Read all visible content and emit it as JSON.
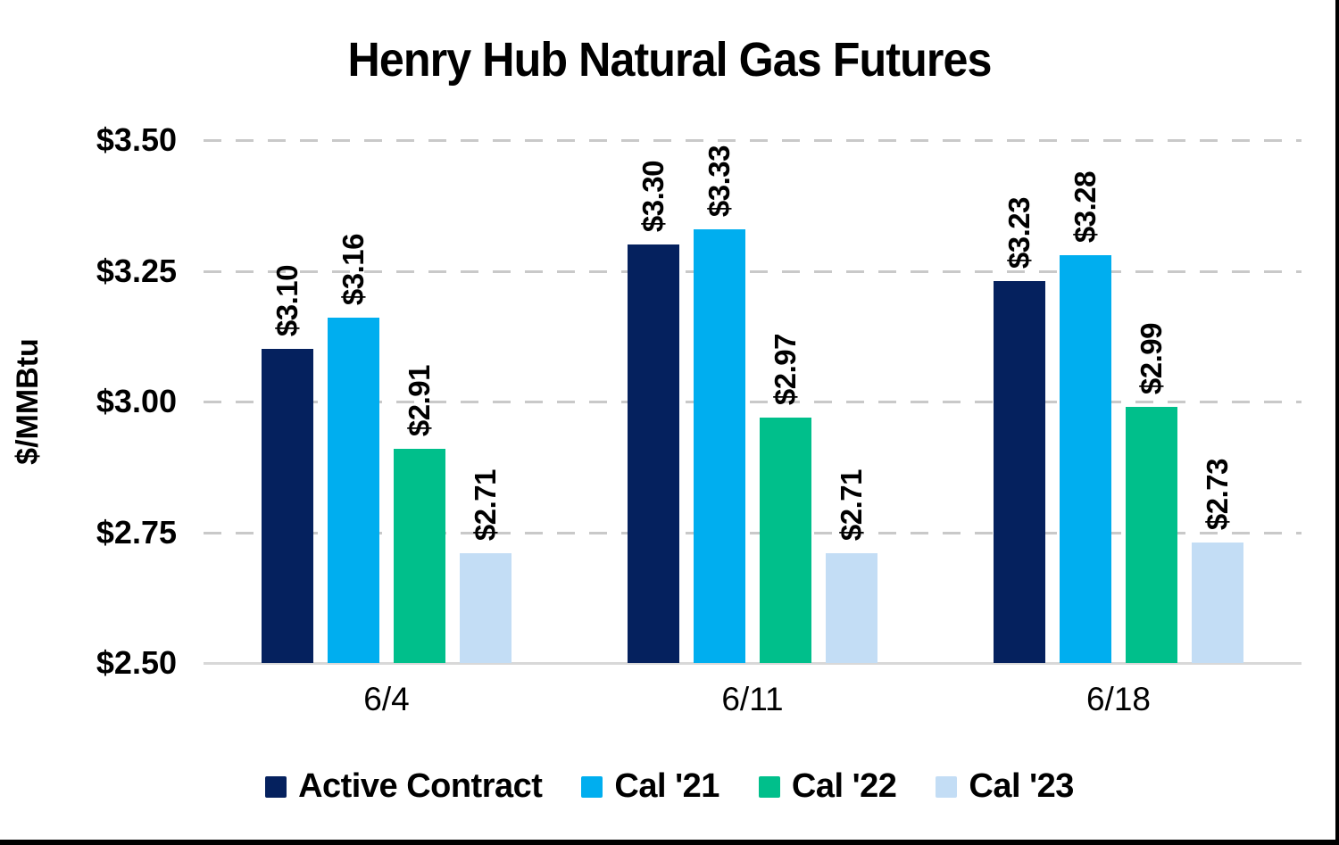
{
  "chart_data": {
    "type": "bar",
    "title": "Henry Hub Natural Gas Futures",
    "ylabel": "$/MMBtu",
    "xlabel": "",
    "categories": [
      "6/4",
      "6/11",
      "6/18"
    ],
    "series": [
      {
        "name": "Active Contract",
        "color": "#05215E",
        "values": [
          3.1,
          3.3,
          3.23
        ],
        "labels": [
          "$3.10",
          "$3.30",
          "$3.23"
        ]
      },
      {
        "name": "Cal '21",
        "color": "#00AEEF",
        "values": [
          3.16,
          3.33,
          3.28
        ],
        "labels": [
          "$3.16",
          "$3.33",
          "$3.28"
        ]
      },
      {
        "name": "Cal '22",
        "color": "#00BF8B",
        "values": [
          2.91,
          2.97,
          2.99
        ],
        "labels": [
          "$2.91",
          "$2.97",
          "$2.99"
        ]
      },
      {
        "name": "Cal '23",
        "color": "#C3DDF5",
        "values": [
          2.71,
          2.71,
          2.73
        ],
        "labels": [
          "$2.71",
          "$2.71",
          "$2.73"
        ]
      }
    ],
    "ylim": [
      2.5,
      3.5
    ],
    "yticks": [
      {
        "value": 3.5,
        "label": "$3.50"
      },
      {
        "value": 3.25,
        "label": "$3.25"
      },
      {
        "value": 3.0,
        "label": "$3.00"
      },
      {
        "value": 2.75,
        "label": "$2.75"
      },
      {
        "value": 2.5,
        "label": "$2.50"
      }
    ],
    "grid": "horizontal-dashed",
    "legend_position": "bottom",
    "data_label_rotation": "vertical"
  },
  "colors": {
    "grid_line": "#C9C9C9",
    "baseline": "#D8D8D8",
    "text": "#000000",
    "card_border": "#000000",
    "background": "#FFFFFF"
  }
}
